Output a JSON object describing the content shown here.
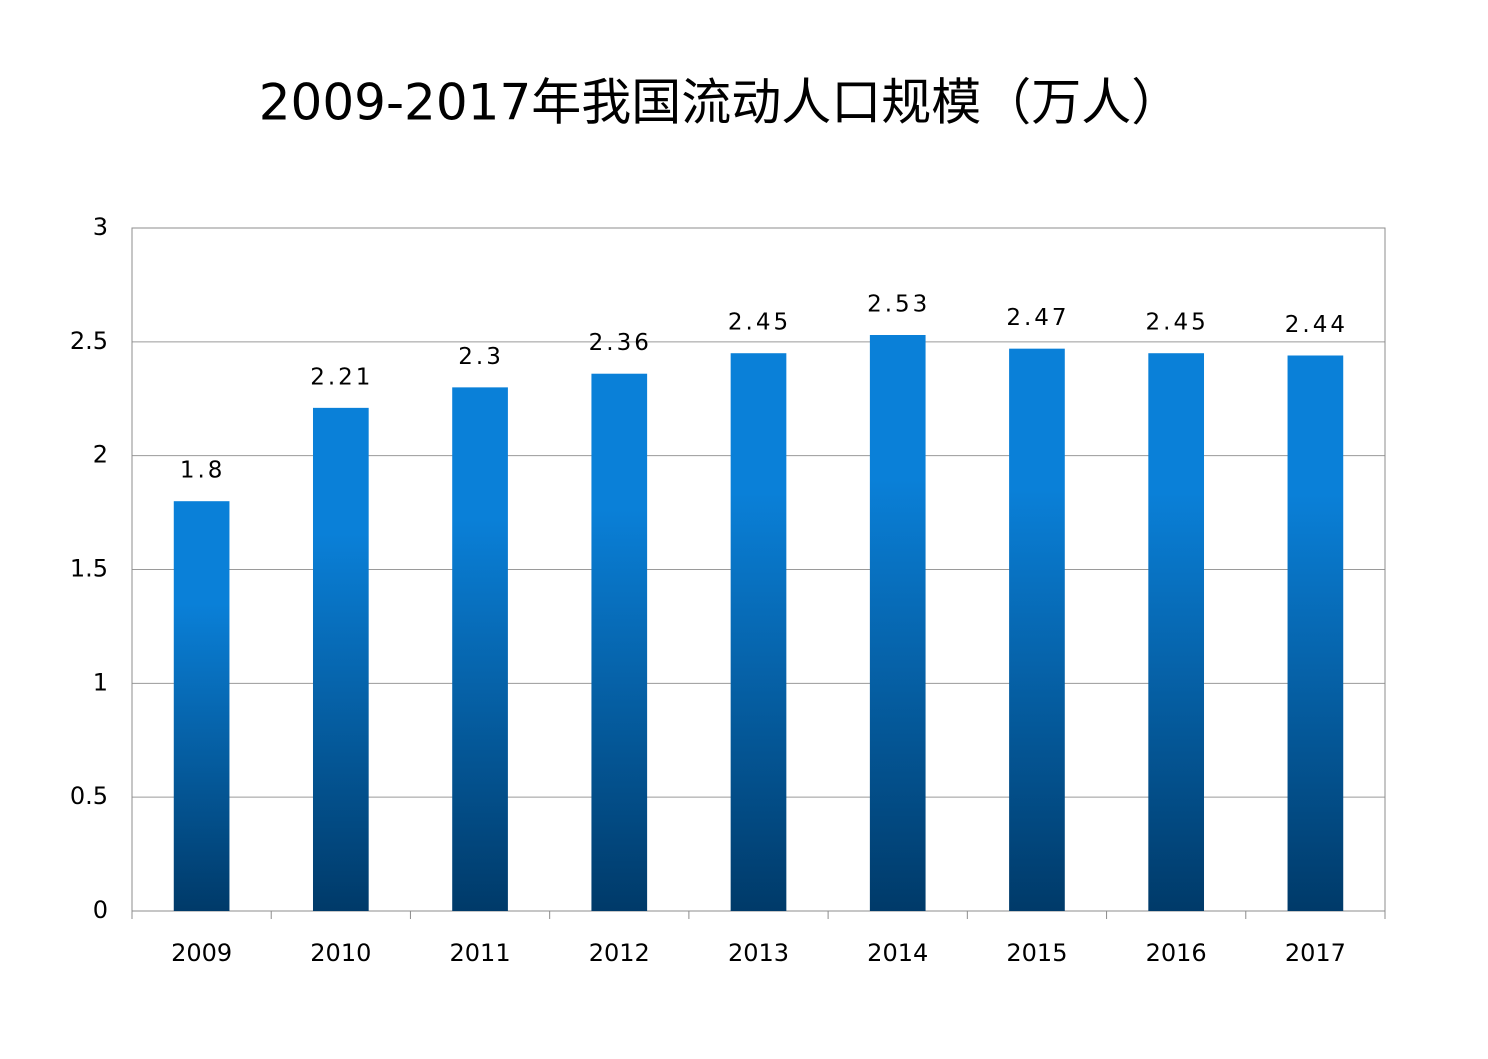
{
  "chart_data": {
    "type": "bar",
    "title": "2009-2017年我国流动人口规模（万人）",
    "categories": [
      "2009",
      "2010",
      "2011",
      "2012",
      "2013",
      "2014",
      "2015",
      "2016",
      "2017"
    ],
    "values": [
      1.8,
      2.21,
      2.3,
      2.36,
      2.45,
      2.53,
      2.47,
      2.45,
      2.44
    ],
    "color": "#0a80d8",
    "ylim": [
      0,
      3
    ],
    "yticks": [
      0,
      0.5,
      1,
      1.5,
      2,
      2.5,
      3
    ],
    "grid": true
  }
}
